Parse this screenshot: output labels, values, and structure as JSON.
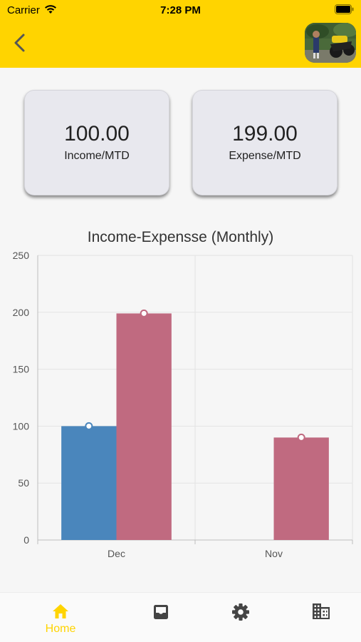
{
  "status_bar": {
    "carrier": "Carrier",
    "time": "7:28 PM"
  },
  "header": {
    "back_icon": "chevron-left-icon",
    "avatar": "user-avatar-photo"
  },
  "cards": [
    {
      "value": "100.00",
      "label": "Income/MTD"
    },
    {
      "value": "199.00",
      "label": "Expense/MTD"
    }
  ],
  "colors": {
    "brand": "#FFD400",
    "income": "#4A86BC",
    "expense": "#C06A80",
    "tab_icon": "#444444"
  },
  "chart_data": {
    "type": "bar",
    "title": "Income-Expensse (Monthly)",
    "categories": [
      "Dec",
      "Nov"
    ],
    "series": [
      {
        "values": [
          100,
          null
        ]
      },
      {
        "values": [
          199,
          90
        ]
      }
    ],
    "ylim": [
      0,
      250
    ],
    "yticks": [
      "0",
      "50",
      "100",
      "150",
      "200",
      "250"
    ],
    "grid": true
  },
  "tabbar": {
    "items": [
      {
        "icon": "home-icon",
        "label": "Home",
        "active": true
      },
      {
        "icon": "inbox-icon",
        "label": ""
      },
      {
        "icon": "gear-icon",
        "label": ""
      },
      {
        "icon": "business-icon",
        "label": ""
      }
    ]
  }
}
